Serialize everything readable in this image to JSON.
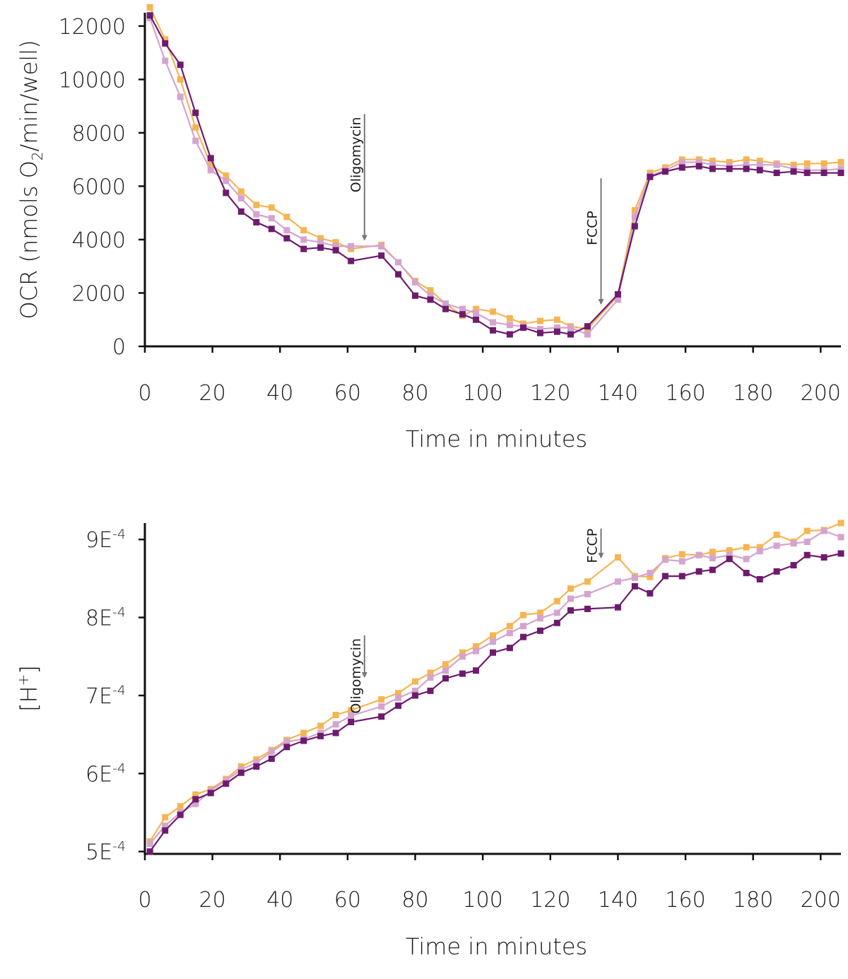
{
  "chart_data": [
    {
      "type": "line",
      "ylabel_main": "OCR (nmols O",
      "ylabel_sub": "2",
      "ylabel_tail": "/min/well)",
      "xlabel": "Time in minutes",
      "xlim": [
        0,
        206
      ],
      "ylim": [
        0,
        12500
      ],
      "xticks": [
        "0",
        "20",
        "40",
        "60",
        "80",
        "100",
        "120",
        "140",
        "160",
        "180",
        "200"
      ],
      "yticks": [
        "0",
        "2000",
        "4000",
        "6000",
        "8000",
        "10000",
        "12000"
      ],
      "x": [
        1.5,
        6,
        10.5,
        15,
        19.5,
        24,
        28.5,
        33,
        37.5,
        42,
        47,
        52,
        56.5,
        61,
        70,
        75,
        80,
        84.5,
        89,
        94,
        98,
        103,
        108,
        112,
        117,
        122,
        126,
        131,
        140,
        145,
        149.5,
        154,
        159,
        164,
        168,
        173,
        178,
        182,
        187,
        192,
        196,
        201,
        206
      ],
      "series": [
        {
          "name": "orange",
          "color": "#f5b553",
          "values": [
            12700,
            11500,
            10000,
            8200,
            6800,
            6400,
            5800,
            5300,
            5200,
            4850,
            4350,
            4050,
            3900,
            3650,
            3800,
            3150,
            2450,
            2100,
            1600,
            1150,
            1400,
            1300,
            1050,
            850,
            950,
            1000,
            750,
            650,
            1900,
            5100,
            6500,
            6700,
            7000,
            7000,
            6950,
            6900,
            7000,
            6950,
            6850,
            6800,
            6850,
            6850,
            6900
          ]
        },
        {
          "name": "light-purple",
          "color": "#d4a4cf",
          "values": [
            12300,
            10700,
            9350,
            7700,
            6600,
            6200,
            5550,
            4950,
            4800,
            4350,
            4000,
            3900,
            3750,
            3750,
            3750,
            3150,
            2400,
            1900,
            1600,
            1400,
            1250,
            900,
            800,
            750,
            650,
            700,
            700,
            450,
            1750,
            4850,
            6400,
            6600,
            6900,
            6900,
            6800,
            6750,
            6800,
            6800,
            6800,
            6650,
            6600,
            6600,
            6650
          ]
        },
        {
          "name": "dark-purple",
          "color": "#6e1b6e",
          "values": [
            12400,
            11350,
            10550,
            8750,
            7050,
            5750,
            5050,
            4650,
            4400,
            4050,
            3650,
            3700,
            3600,
            3200,
            3400,
            2700,
            1900,
            1750,
            1400,
            1200,
            1000,
            600,
            450,
            700,
            500,
            550,
            450,
            750,
            1950,
            4500,
            6350,
            6550,
            6700,
            6750,
            6650,
            6650,
            6650,
            6600,
            6500,
            6550,
            6500,
            6500,
            6500
          ]
        }
      ],
      "annotations": [
        {
          "label": "Oligomycin",
          "x": 65,
          "tail_y": 8700,
          "head_y": 4000
        },
        {
          "label": "FCCP",
          "x": 135,
          "tail_y": 6300,
          "head_y": 1600
        }
      ]
    },
    {
      "type": "line",
      "ylabel_main": "[H",
      "ylabel_sup": "+",
      "ylabel_tail": "]",
      "xlabel": "Time in minutes",
      "xlim": [
        0,
        206
      ],
      "ylim": [
        0.000497,
        0.000921
      ],
      "xticks": [
        "0",
        "20",
        "40",
        "60",
        "80",
        "100",
        "120",
        "140",
        "160",
        "180",
        "200"
      ],
      "yticks": [
        {
          "mantissa": "5E",
          "exp": "-4",
          "value": 0.0005
        },
        {
          "mantissa": "6E",
          "exp": "-4",
          "value": 0.0006
        },
        {
          "mantissa": "7E",
          "exp": "-4",
          "value": 0.0007
        },
        {
          "mantissa": "8E",
          "exp": "-4",
          "value": 0.0008
        },
        {
          "mantissa": "9E",
          "exp": "-4",
          "value": 0.0009
        }
      ],
      "x": [
        1.5,
        6,
        10.5,
        15,
        19.5,
        24,
        28.5,
        33,
        37.5,
        42,
        47,
        52,
        56.5,
        61,
        70,
        75,
        80,
        84.5,
        89,
        94,
        98,
        103,
        108,
        112,
        117,
        122,
        126,
        131,
        140,
        145,
        149.5,
        154,
        159,
        164,
        168,
        173,
        178,
        182,
        187,
        192,
        196,
        201,
        206
      ],
      "series": [
        {
          "name": "orange",
          "color": "#f5b553",
          "values": [
            0.000513,
            0.000544,
            0.000558,
            0.000573,
            0.00058,
            0.000593,
            0.000609,
            0.000618,
            0.00063,
            0.000643,
            0.000652,
            0.000661,
            0.000675,
            0.000681,
            0.000695,
            0.000703,
            0.000718,
            0.000729,
            0.00074,
            0.000755,
            0.000763,
            0.000777,
            0.000789,
            0.000803,
            0.000806,
            0.000821,
            0.000837,
            0.000846,
            0.000877,
            0.000853,
            0.000852,
            0.000876,
            0.000881,
            0.00088,
            0.000884,
            0.000886,
            0.00089,
            0.00089,
            0.000906,
            0.000897,
            0.000911,
            0.000912,
            0.000921
          ]
        },
        {
          "name": "light-purple",
          "color": "#d4a4cf",
          "values": [
            0.00051,
            0.000533,
            0.00055,
            0.000561,
            0.000578,
            0.000591,
            0.000605,
            0.000614,
            0.000628,
            0.000641,
            0.000644,
            0.000652,
            0.000663,
            0.000674,
            0.000686,
            0.000697,
            0.000706,
            0.000723,
            0.000732,
            0.00075,
            0.000757,
            0.000769,
            0.00078,
            0.000789,
            0.000799,
            0.000806,
            0.000824,
            0.00083,
            0.000846,
            0.000851,
            0.000857,
            0.000874,
            0.000872,
            0.00088,
            0.000876,
            0.00088,
            0.000875,
            0.000885,
            0.000892,
            0.000895,
            0.000897,
            0.000911,
            0.000903
          ]
        },
        {
          "name": "dark-purple",
          "color": "#6e1b6e",
          "values": [
            0.0005,
            0.000527,
            0.000547,
            0.000567,
            0.000575,
            0.000587,
            0.000601,
            0.000609,
            0.000619,
            0.000634,
            0.000642,
            0.000648,
            0.000652,
            0.000666,
            0.000673,
            0.000687,
            0.0007,
            0.000706,
            0.000722,
            0.000728,
            0.000732,
            0.000755,
            0.000761,
            0.000775,
            0.000783,
            0.000793,
            0.000809,
            0.000811,
            0.000813,
            0.00084,
            0.000831,
            0.000853,
            0.000853,
            0.000859,
            0.000861,
            0.000875,
            0.000857,
            0.000849,
            0.000859,
            0.000867,
            0.00088,
            0.000877,
            0.000882
          ]
        }
      ],
      "annotations": [
        {
          "label": "Oligomycin",
          "x": 65,
          "tail_y": 0.000777,
          "head_y": 0.000724
        },
        {
          "label": "FCCP",
          "x": 135,
          "tail_y": 0.000914,
          "head_y": 0.000877
        }
      ]
    }
  ]
}
